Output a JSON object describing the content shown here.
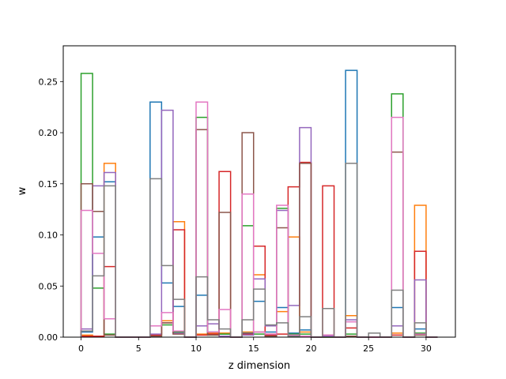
{
  "chart_data": {
    "type": "step-histogram",
    "title": "",
    "xlabel": "z dimension",
    "ylabel": "w",
    "xlim": [
      -1.55,
      32.55
    ],
    "ylim": [
      0,
      0.285
    ],
    "xticks": [
      0,
      5,
      10,
      15,
      20,
      25,
      30
    ],
    "yticks": [
      0.0,
      0.05,
      0.1,
      0.15,
      0.2,
      0.25
    ],
    "ytick_labels": [
      "0.00",
      "0.05",
      "0.10",
      "0.15",
      "0.20",
      "0.25"
    ],
    "bin_width": 1,
    "bin_start": 0,
    "legend": "none",
    "grid": false,
    "series": [
      {
        "color": "#1f77b4",
        "values": [
          0.005,
          0.098,
          0.152,
          0,
          0,
          0,
          0.23,
          0.053,
          0.03,
          0,
          0.041,
          0.005,
          0.003,
          0,
          0.004,
          0.035,
          0.005,
          0.029,
          0.004,
          0.007,
          0,
          0,
          0,
          0.261,
          0,
          0,
          0,
          0.029,
          0,
          0.008,
          0
        ]
      },
      {
        "color": "#ff7f0e",
        "values": [
          0.002,
          0.001,
          0.17,
          0,
          0,
          0,
          0.002,
          0.016,
          0.113,
          0,
          0.003,
          0.004,
          0.004,
          0,
          0.005,
          0.061,
          0.003,
          0.025,
          0.098,
          0.005,
          0,
          0,
          0,
          0.021,
          0,
          0,
          0,
          0.004,
          0,
          0.129,
          0
        ]
      },
      {
        "color": "#2ca02c",
        "values": [
          0.258,
          0.048,
          0.003,
          0,
          0,
          0,
          0.001,
          0.012,
          0.005,
          0,
          0.215,
          0.002,
          0.003,
          0,
          0.109,
          0.003,
          0.002,
          0.126,
          0.003,
          0.003,
          0,
          0,
          0,
          0.003,
          0,
          0,
          0,
          0.238,
          0,
          0.004,
          0
        ]
      },
      {
        "color": "#d62728",
        "values": [
          0.001,
          0.001,
          0.069,
          0,
          0,
          0,
          0.002,
          0.014,
          0.105,
          0,
          0.002,
          0.003,
          0.162,
          0,
          0.003,
          0.089,
          0.002,
          0.003,
          0.147,
          0.171,
          0,
          0.148,
          0,
          0.009,
          0,
          0,
          0,
          0.002,
          0,
          0.084,
          0
        ]
      },
      {
        "color": "#9467bd",
        "values": [
          0.008,
          0.148,
          0.161,
          0,
          0,
          0,
          0.003,
          0.222,
          0.004,
          0,
          0.011,
          0.013,
          0.001,
          0,
          0.002,
          0.057,
          0.011,
          0.124,
          0.031,
          0.205,
          0,
          0.001,
          0,
          0.017,
          0,
          0,
          0,
          0.011,
          0,
          0.056,
          0
        ]
      },
      {
        "color": "#8c564b",
        "values": [
          0.15,
          0.123,
          0.002,
          0,
          0,
          0,
          0.001,
          0.014,
          0.003,
          0,
          0.203,
          0.002,
          0.122,
          0,
          0.2,
          0.005,
          0.001,
          0.107,
          0.001,
          0.17,
          0,
          0.002,
          0,
          0.001,
          0,
          0,
          0,
          0.181,
          0,
          0.002,
          0
        ]
      },
      {
        "color": "#e377c2",
        "values": [
          0.124,
          0.082,
          0.018,
          0,
          0,
          0,
          0.011,
          0.024,
          0.006,
          0,
          0.23,
          0.005,
          0.027,
          0,
          0.14,
          0.005,
          0.003,
          0.129,
          0.002,
          0.001,
          0,
          0.002,
          0,
          0.015,
          0,
          0,
          0,
          0.215,
          0,
          0.003,
          0
        ]
      },
      {
        "color": "#7f7f7f",
        "values": [
          0.006,
          0.06,
          0.148,
          0,
          0,
          0,
          0.155,
          0.07,
          0.037,
          0,
          0.059,
          0.017,
          0.008,
          0,
          0.017,
          0.047,
          0.012,
          0.014,
          0.001,
          0.02,
          0,
          0.028,
          0,
          0.17,
          0,
          0.004,
          0,
          0.046,
          0,
          0.014,
          0
        ]
      }
    ]
  }
}
